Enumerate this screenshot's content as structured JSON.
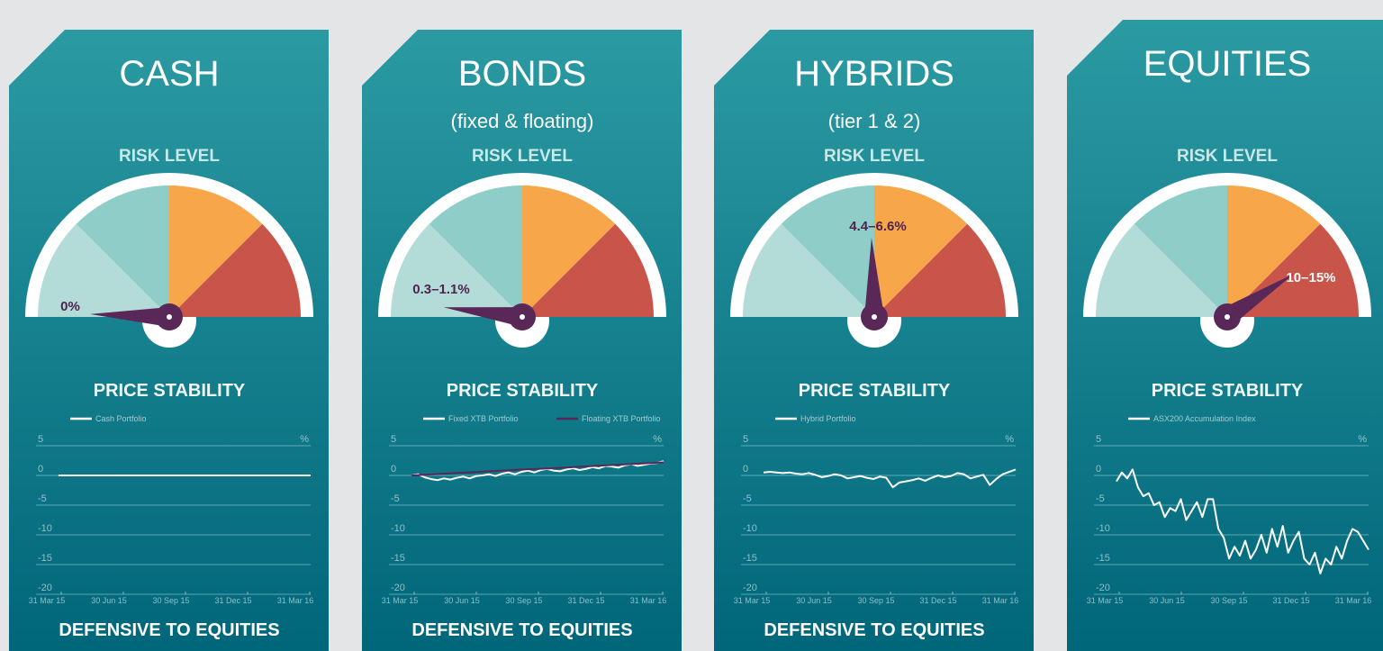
{
  "panels": [
    {
      "title": "CASH",
      "risk_label": "RISK LEVEL",
      "gauge_label": "0%",
      "stability_label": "PRICE STABILITY",
      "footer": "DEFENSIVE TO EQUITIES"
    },
    {
      "title": "BONDS",
      "subtitle": "(fixed & floating)",
      "risk_label": "RISK LEVEL",
      "gauge_label": "0.3–1.1%",
      "stability_label": "PRICE STABILITY",
      "footer": "DEFENSIVE TO EQUITIES"
    },
    {
      "title": "HYBRIDS",
      "subtitle": "(tier 1 & 2)",
      "risk_label": "RISK LEVEL",
      "gauge_label": "4.4–6.6%",
      "stability_label": "PRICE STABILITY",
      "footer": "DEFENSIVE TO EQUITIES"
    },
    {
      "title": "EQUITIES",
      "risk_label": "RISK LEVEL",
      "gauge_label": "10–15%",
      "stability_label": "PRICE STABILITY"
    }
  ],
  "chart_data": [
    {
      "type": "line",
      "y_unit": "%",
      "ylim": [
        -20,
        5
      ],
      "yticks": [
        5,
        0,
        -5,
        -10,
        -15,
        -20
      ],
      "x_labels": [
        "31 Mar 15",
        "30 Jun 15",
        "30 Sep 15",
        "31 Dec 15",
        "31 Mar 16"
      ],
      "series": [
        {
          "name": "Cash Portfolio",
          "color": "#ffffff",
          "values": [
            0,
            0,
            0,
            0,
            0,
            0,
            0,
            0,
            0,
            0,
            0,
            0,
            0,
            0,
            0,
            0,
            0,
            0,
            0,
            0
          ]
        }
      ]
    },
    {
      "type": "line",
      "y_unit": "%",
      "ylim": [
        -20,
        5
      ],
      "yticks": [
        5,
        0,
        -5,
        -10,
        -15,
        -20
      ],
      "x_labels": [
        "31 Mar 15",
        "30 Jun 15",
        "30 Sep 15",
        "31 Dec 15",
        "31 Mar 16"
      ],
      "series": [
        {
          "name": "Fixed XTB Portfolio",
          "color": "#ffffff",
          "values": [
            0,
            0.2,
            -0.3,
            -0.6,
            -0.8,
            -0.5,
            -0.7,
            -0.4,
            -0.2,
            -0.5,
            -0.1,
            0,
            0.2,
            -0.1,
            0.3,
            0.5,
            0.2,
            0.6,
            0.8,
            0.5,
            0.9,
            1.1,
            0.8,
            0.7,
            1,
            1.2,
            0.9,
            1.1,
            1.4,
            1.2,
            1.6,
            1.5,
            1.3,
            1.7,
            1.9,
            1.6,
            1.8,
            2,
            2.1,
            2.4
          ]
        },
        {
          "name": "Floating XTB Portfolio",
          "color": "#5a2759",
          "values": [
            0,
            0.25,
            0.5,
            0.75,
            1,
            1.2,
            1.45,
            1.7,
            1.95,
            2.2
          ]
        }
      ]
    },
    {
      "type": "line",
      "y_unit": "%",
      "ylim": [
        -20,
        5
      ],
      "yticks": [
        5,
        0,
        -5,
        -10,
        -15,
        -20
      ],
      "x_labels": [
        "31 Mar 15",
        "30 Jun 15",
        "30 Sep 15",
        "31 Dec 15",
        "31 Mar 16"
      ],
      "series": [
        {
          "name": "Hybrid Portfolio",
          "color": "#ffffff",
          "values": [
            0.5,
            0.6,
            0.5,
            0.4,
            0.5,
            0.3,
            0.2,
            0.4,
            0.1,
            -0.3,
            -0.1,
            0.2,
            0,
            -0.5,
            -0.3,
            -0.1,
            -0.4,
            -0.6,
            -0.2,
            -0.4,
            -2,
            -1.2,
            -1,
            -0.8,
            -0.5,
            -0.9,
            -0.4,
            0,
            -0.3,
            -0.1,
            0.4,
            0.2,
            -0.5,
            -0.2,
            0.1,
            -1.6,
            -0.6,
            0.2,
            0.6,
            1
          ]
        }
      ]
    },
    {
      "type": "line",
      "y_unit": "%",
      "ylim": [
        -20,
        5
      ],
      "yticks": [
        5,
        0,
        -5,
        -10,
        -15,
        -20
      ],
      "x_labels": [
        "31 Mar 15",
        "30 Jun 15",
        "30 Sep 15",
        "31 Dec 15",
        "31 Mar 16"
      ],
      "series": [
        {
          "name": "ASX200 Accumulation Index",
          "color": "#ffffff",
          "values": [
            -1,
            0.5,
            -0.5,
            1,
            -2,
            -3.5,
            -3,
            -5,
            -4.5,
            -7,
            -5.5,
            -6,
            -4,
            -7.5,
            -6,
            -4.5,
            -7,
            -4,
            -4,
            -9,
            -10.5,
            -14,
            -12,
            -13.5,
            -11,
            -14,
            -12.5,
            -10,
            -13,
            -9,
            -12,
            -8.5,
            -13,
            -11,
            -9.5,
            -14,
            -15,
            -13,
            -16.5,
            -14,
            -15,
            -12,
            -14,
            -11,
            -9,
            -9.5,
            -11,
            -12.5
          ]
        }
      ]
    }
  ]
}
